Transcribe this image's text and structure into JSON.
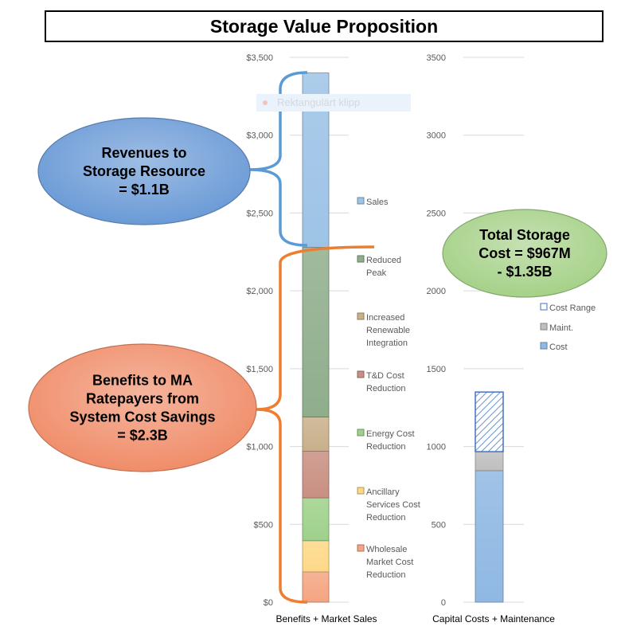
{
  "title": "Storage Value Proposition",
  "watermark_text": "Rektangulärt klipp",
  "callouts": {
    "revenues": "Revenues to\nStorage Resource\n= $1.1B",
    "benefits": "Benefits to MA\nRatepayers from\nSystem Cost Savings\n= $2.3B",
    "total_cost": "Total Storage\nCost = $967M\n- $1.35B"
  },
  "colors": {
    "revenues_bubble": "#6a9ad6",
    "benefits_bubble": "#f08d69",
    "cost_bubble": "#a5d188",
    "blue_brace": "#5b9bd5",
    "orange_brace": "#ed7d31"
  },
  "chart_data": [
    {
      "type": "bar",
      "stacked": true,
      "xlabel": "Benefits + Market Sales",
      "categories": [
        "Benefits + Market Sales"
      ],
      "ylim": [
        0,
        3500
      ],
      "yticks": [
        0,
        500,
        1000,
        1500,
        2000,
        2500,
        3000,
        3500
      ],
      "ytick_labels": [
        "$0",
        "$500",
        "$1,000",
        "$1,500",
        "$2,000",
        "$2,500",
        "$3,000",
        "$3,500"
      ],
      "grid": true,
      "legend_position": "right",
      "series": [
        {
          "name": "Wholesale Market Cost Reduction",
          "values": [
            195
          ],
          "color": "#f4a582"
        },
        {
          "name": "Ancillary Services Cost Reduction",
          "values": [
            200
          ],
          "color": "#fdd887"
        },
        {
          "name": "Energy Cost Reduction",
          "values": [
            275
          ],
          "color": "#9fd18b"
        },
        {
          "name": "T&D Cost Reduction",
          "values": [
            300
          ],
          "color": "#c98f82"
        },
        {
          "name": "Increased Renewable Integration",
          "values": [
            220
          ],
          "color": "#c9b08b"
        },
        {
          "name": "Reduced Peak",
          "values": [
            1090
          ],
          "color": "#8fae8c"
        },
        {
          "name": "Sales",
          "values": [
            1120
          ],
          "color": "#9dc3e6"
        }
      ]
    },
    {
      "type": "bar",
      "stacked": true,
      "xlabel": "Capital Costs + Maintenance",
      "categories": [
        "Capital Costs + Maintenance"
      ],
      "ylim": [
        0,
        3500
      ],
      "yticks": [
        0,
        500,
        1000,
        1500,
        2000,
        2500,
        3000,
        3500
      ],
      "ytick_labels": [
        "0",
        "500",
        "1000",
        "1500",
        "2000",
        "2500",
        "3000",
        "3500"
      ],
      "grid": true,
      "legend_position": "right",
      "series": [
        {
          "name": "Cost",
          "values": [
            845
          ],
          "color": "#8fb8e3"
        },
        {
          "name": "Maint.",
          "values": [
            122
          ],
          "color": "#bfbfbf"
        },
        {
          "name": "Cost Range",
          "values": [
            383
          ],
          "color": "#4472c4",
          "hatched": true
        }
      ]
    }
  ]
}
